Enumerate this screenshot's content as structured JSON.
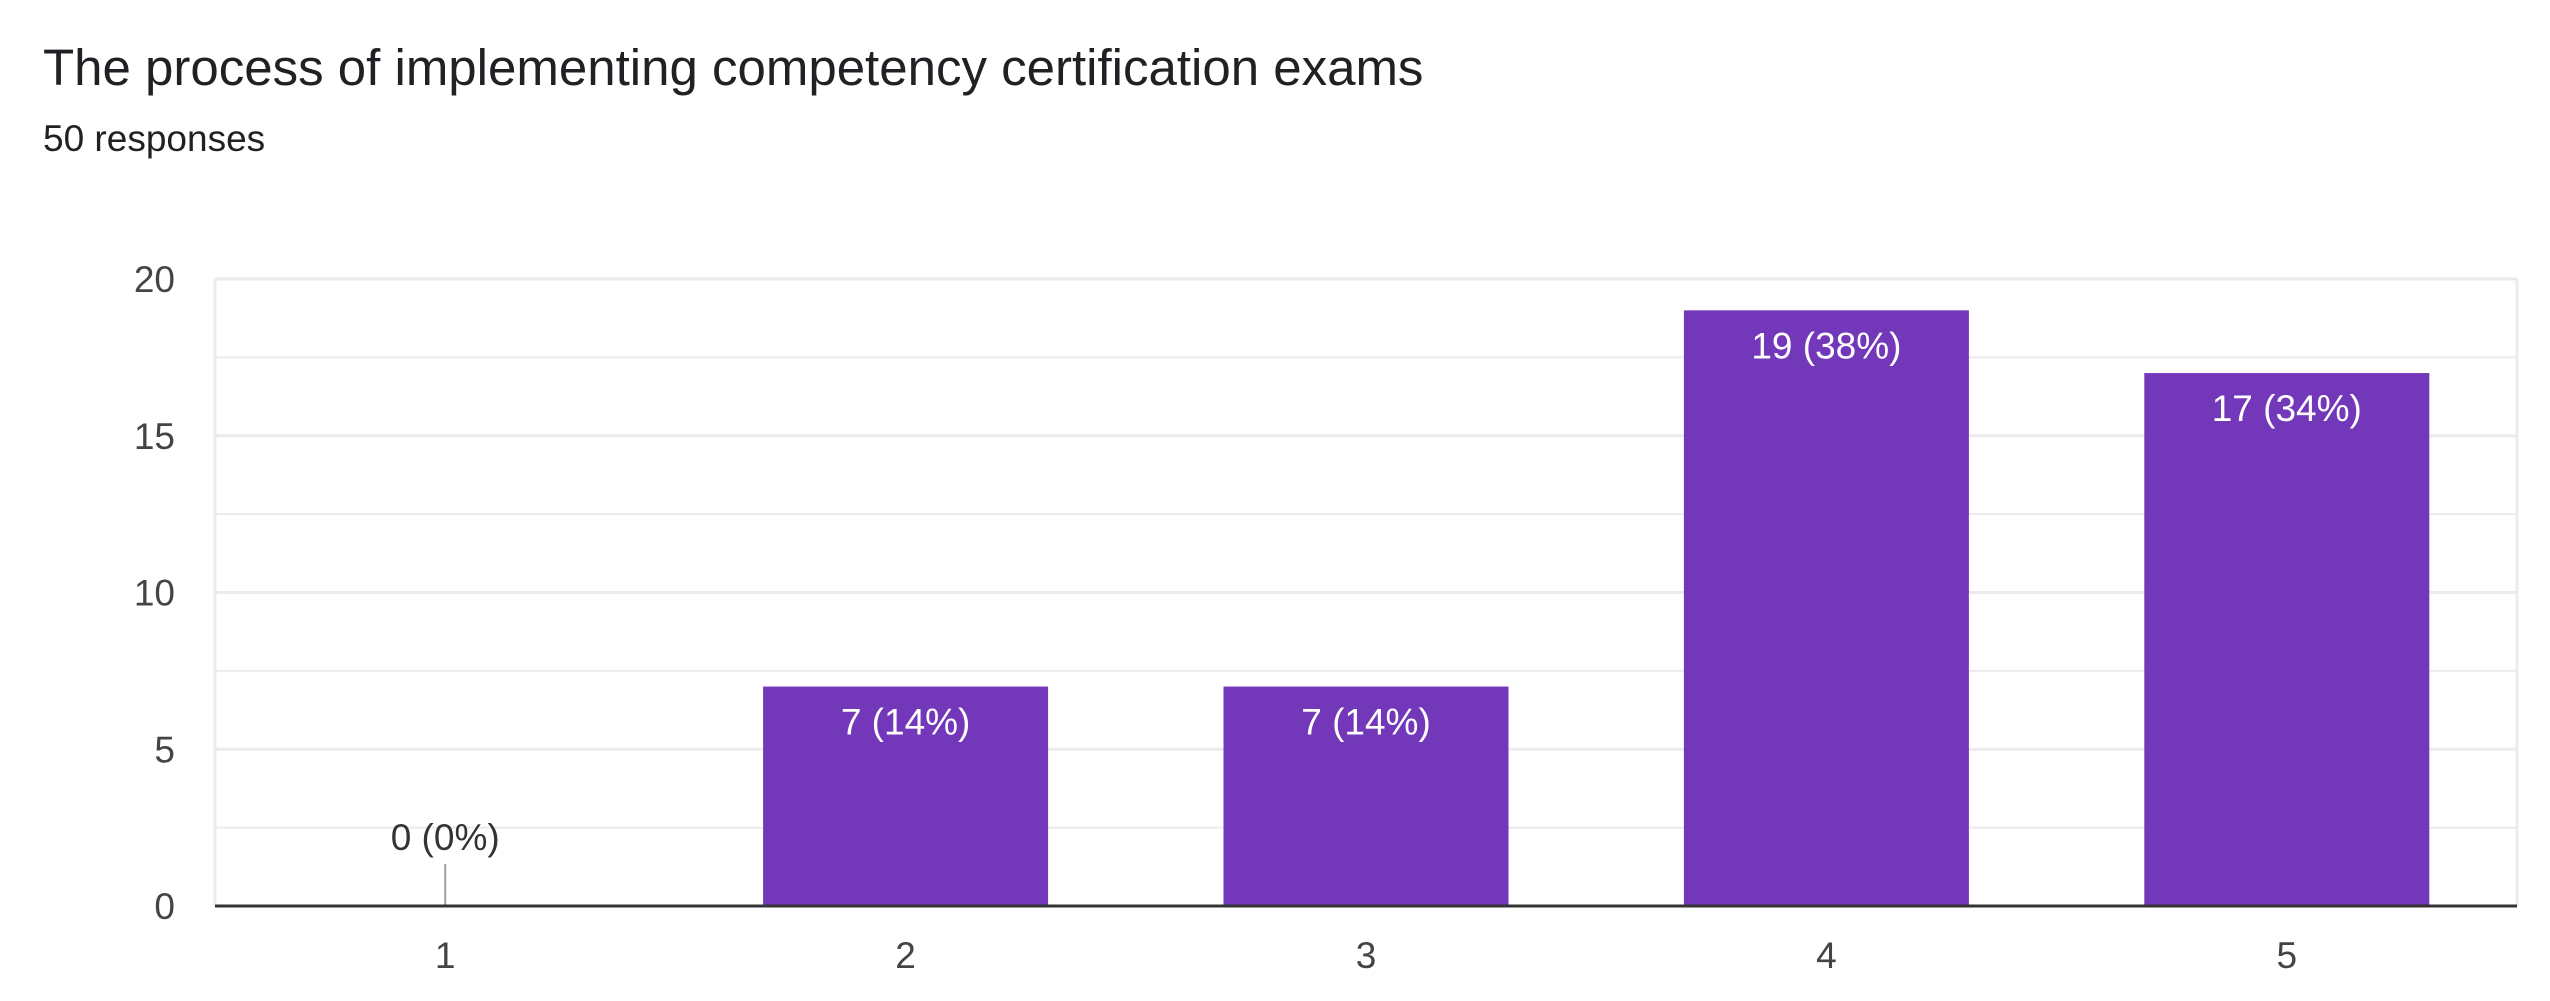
{
  "header": {
    "title": "The process of implementing competency certification exams",
    "subtitle": "50 responses"
  },
  "chart_data": {
    "type": "bar",
    "title": "The process of implementing competency certification exams",
    "subtitle": "50 responses",
    "xlabel": "",
    "ylabel": "",
    "categories": [
      "1",
      "2",
      "3",
      "4",
      "5"
    ],
    "values": [
      0,
      7,
      7,
      19,
      17
    ],
    "data_labels": [
      "0 (0%)",
      "7 (14%)",
      "7 (14%)",
      "19 (38%)",
      "17 (34%)"
    ],
    "ylim": [
      0,
      20
    ],
    "yticks": [
      0,
      5,
      10,
      15,
      20
    ],
    "ytick_labels": [
      "0",
      "5",
      "10",
      "15",
      "20"
    ],
    "minor_gridlines": true,
    "grid": true,
    "legend": "none",
    "colors": {
      "bar": "#7337BA",
      "label_inside": "#FFFFFF",
      "label_outside": "#333333",
      "gridline": "#EBEBEB",
      "axis": "#333333"
    }
  }
}
